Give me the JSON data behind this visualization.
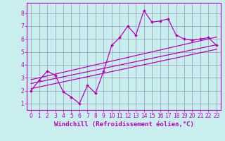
{
  "xlabel": "Windchill (Refroidissement éolien,°C)",
  "bg_color": "#c8eeee",
  "line_color": "#bb00bb",
  "xlim": [
    -0.5,
    23.5
  ],
  "ylim": [
    0.5,
    8.8
  ],
  "xticks": [
    0,
    1,
    2,
    3,
    4,
    5,
    6,
    7,
    8,
    9,
    10,
    11,
    12,
    13,
    14,
    15,
    16,
    17,
    18,
    19,
    20,
    21,
    22,
    23
  ],
  "yticks": [
    1,
    2,
    3,
    4,
    5,
    6,
    7,
    8
  ],
  "data_x": [
    0,
    1,
    2,
    3,
    4,
    5,
    6,
    7,
    8,
    9,
    10,
    11,
    12,
    13,
    14,
    15,
    16,
    17,
    18,
    19,
    20,
    21,
    22,
    23
  ],
  "data_y": [
    2.0,
    2.8,
    3.5,
    3.2,
    1.9,
    1.5,
    1.0,
    2.4,
    1.8,
    3.5,
    5.5,
    6.1,
    7.0,
    6.3,
    8.2,
    7.3,
    7.4,
    7.55,
    6.3,
    6.0,
    5.9,
    6.0,
    6.1,
    5.5
  ],
  "line1_x": [
    0,
    23
  ],
  "line1_y": [
    2.15,
    5.2
  ],
  "line2_x": [
    0,
    23
  ],
  "line2_y": [
    2.55,
    5.55
  ],
  "line3_x": [
    0,
    23
  ],
  "line3_y": [
    2.85,
    6.15
  ],
  "grid_color": "#9999bb",
  "tick_fontsize": 5.5,
  "xlabel_fontsize": 6.5
}
